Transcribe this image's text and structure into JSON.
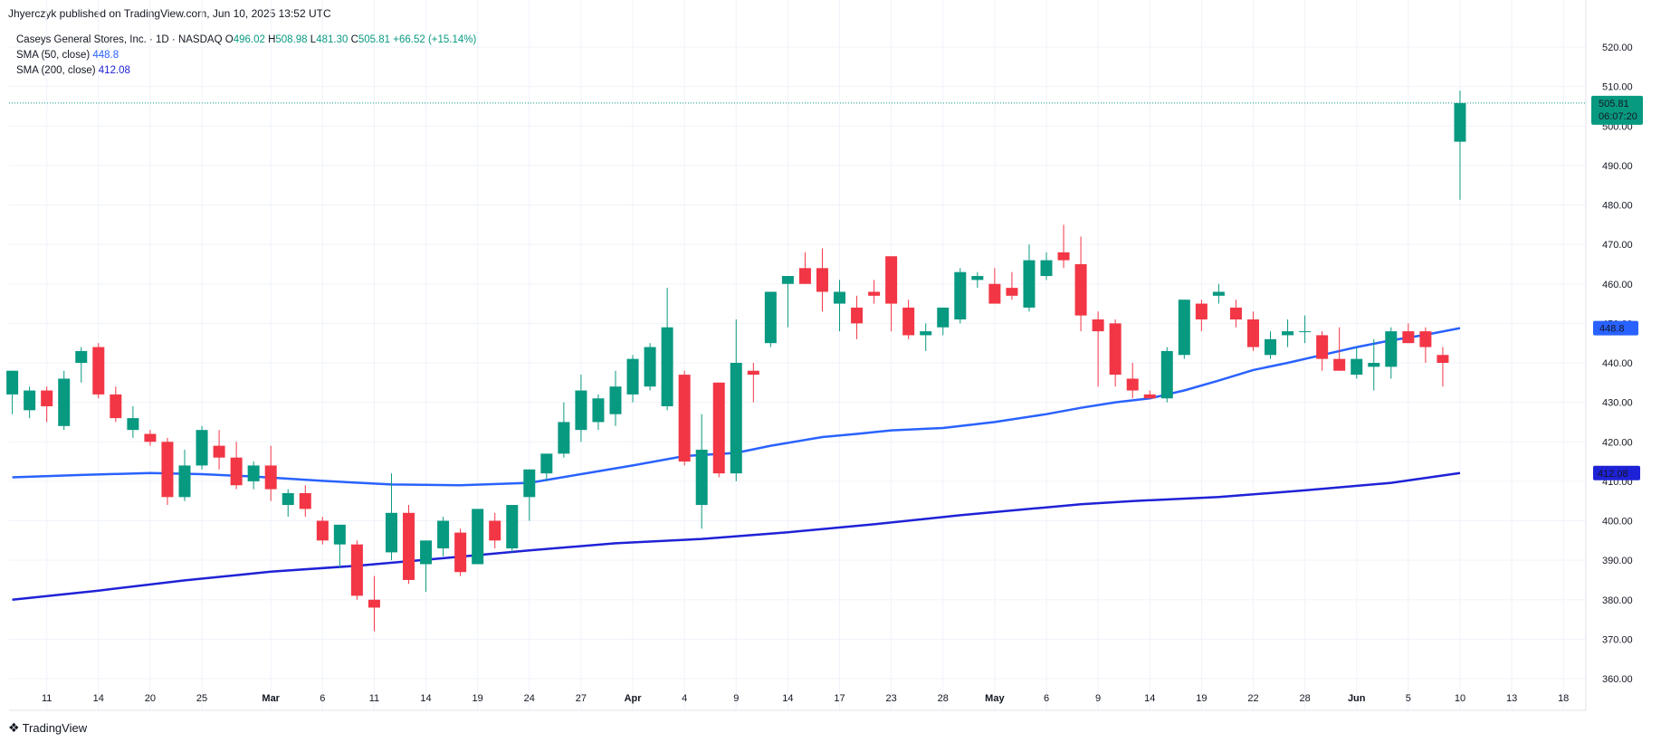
{
  "header": {
    "publisher_text": "Jhyerczyk published on TradingView.com, Jun 10, 2025 13:52 UTC"
  },
  "legend": {
    "symbol": "Caseys General Stores, Inc. · 1D · NASDAQ",
    "o_label": "O",
    "o_value": "496.02",
    "h_label": "H",
    "h_value": "508.98",
    "l_label": "L",
    "l_value": "481.30",
    "c_label": "C",
    "c_value": "505.81",
    "change": "+66.52 (+15.14%)",
    "sma50_label": "SMA (50, close)",
    "sma50_value": "448.8",
    "sma200_label": "SMA (200, close)",
    "sma200_value": "412.08"
  },
  "price_badge": {
    "price": "505.81",
    "countdown": "06:07:20"
  },
  "footer": {
    "brand": "TradingView"
  },
  "colors": {
    "up": "#089981",
    "down": "#f23645",
    "sma50": "#2962ff",
    "sma200": "#1e22d6",
    "grid": "#f0f3fa"
  },
  "chart_data": {
    "type": "candlestick",
    "ylim": [
      355,
      525
    ],
    "y_ticks": [
      360,
      370,
      380,
      390,
      400,
      410,
      420,
      430,
      440,
      450,
      460,
      470,
      480,
      490,
      500,
      510,
      520
    ],
    "y_tick_labels": [
      "360.00",
      "370.00",
      "380.00",
      "390.00",
      "400.00",
      "410.00",
      "420.00",
      "430.00",
      "440.00",
      "450.00",
      "460.00",
      "470.00",
      "480.00",
      "490.00",
      "500.00",
      "510.00",
      "520.00"
    ],
    "x_ticks": [
      {
        "label": "11",
        "slot": 2,
        "bold": false
      },
      {
        "label": "14",
        "slot": 5,
        "bold": false
      },
      {
        "label": "20",
        "slot": 8,
        "bold": false
      },
      {
        "label": "25",
        "slot": 11,
        "bold": false
      },
      {
        "label": "Mar",
        "slot": 15,
        "bold": true
      },
      {
        "label": "6",
        "slot": 18,
        "bold": false
      },
      {
        "label": "11",
        "slot": 21,
        "bold": false
      },
      {
        "label": "14",
        "slot": 24,
        "bold": false
      },
      {
        "label": "19",
        "slot": 27,
        "bold": false
      },
      {
        "label": "24",
        "slot": 30,
        "bold": false
      },
      {
        "label": "27",
        "slot": 33,
        "bold": false
      },
      {
        "label": "Apr",
        "slot": 36,
        "bold": true
      },
      {
        "label": "4",
        "slot": 39,
        "bold": false
      },
      {
        "label": "9",
        "slot": 42,
        "bold": false
      },
      {
        "label": "14",
        "slot": 45,
        "bold": false
      },
      {
        "label": "17",
        "slot": 48,
        "bold": false
      },
      {
        "label": "23",
        "slot": 51,
        "bold": false
      },
      {
        "label": "28",
        "slot": 54,
        "bold": false
      },
      {
        "label": "May",
        "slot": 57,
        "bold": true
      },
      {
        "label": "6",
        "slot": 60,
        "bold": false
      },
      {
        "label": "9",
        "slot": 63,
        "bold": false
      },
      {
        "label": "14",
        "slot": 66,
        "bold": false
      },
      {
        "label": "19",
        "slot": 69,
        "bold": false
      },
      {
        "label": "22",
        "slot": 72,
        "bold": false
      },
      {
        "label": "28",
        "slot": 75,
        "bold": false
      },
      {
        "label": "Jun",
        "slot": 78,
        "bold": true
      },
      {
        "label": "5",
        "slot": 81,
        "bold": false
      },
      {
        "label": "10",
        "slot": 84,
        "bold": false
      },
      {
        "label": "13",
        "slot": 87,
        "bold": false
      },
      {
        "label": "18",
        "slot": 90,
        "bold": false
      }
    ],
    "candles": [
      {
        "o": 432,
        "h": 438,
        "l": 427,
        "c": 438
      },
      {
        "o": 428,
        "h": 434,
        "l": 426,
        "c": 433
      },
      {
        "o": 433,
        "h": 434,
        "l": 425,
        "c": 429
      },
      {
        "o": 424,
        "h": 438,
        "l": 423,
        "c": 436
      },
      {
        "o": 440,
        "h": 444,
        "l": 435,
        "c": 443
      },
      {
        "o": 444,
        "h": 445,
        "l": 431,
        "c": 432
      },
      {
        "o": 432,
        "h": 434,
        "l": 425,
        "c": 426
      },
      {
        "o": 423,
        "h": 429,
        "l": 421,
        "c": 426
      },
      {
        "o": 422,
        "h": 423,
        "l": 419,
        "c": 420
      },
      {
        "o": 420,
        "h": 421,
        "l": 404,
        "c": 406
      },
      {
        "o": 406,
        "h": 418,
        "l": 405,
        "c": 414
      },
      {
        "o": 414,
        "h": 424,
        "l": 413,
        "c": 423
      },
      {
        "o": 419,
        "h": 423,
        "l": 413,
        "c": 416
      },
      {
        "o": 416,
        "h": 420,
        "l": 408,
        "c": 409
      },
      {
        "o": 410,
        "h": 415,
        "l": 408,
        "c": 414
      },
      {
        "o": 414,
        "h": 419,
        "l": 405,
        "c": 408
      },
      {
        "o": 404,
        "h": 408,
        "l": 401,
        "c": 407
      },
      {
        "o": 407,
        "h": 409,
        "l": 401,
        "c": 403
      },
      {
        "o": 400,
        "h": 401,
        "l": 394,
        "c": 395
      },
      {
        "o": 394,
        "h": 399,
        "l": 388,
        "c": 399
      },
      {
        "o": 394,
        "h": 395,
        "l": 380,
        "c": 381
      },
      {
        "o": 380,
        "h": 386,
        "l": 372,
        "c": 378
      },
      {
        "o": 392,
        "h": 412,
        "l": 390,
        "c": 402
      },
      {
        "o": 402,
        "h": 404,
        "l": 384,
        "c": 385
      },
      {
        "o": 389,
        "h": 395,
        "l": 382,
        "c": 395
      },
      {
        "o": 393,
        "h": 401,
        "l": 391,
        "c": 400
      },
      {
        "o": 397,
        "h": 398,
        "l": 386,
        "c": 387
      },
      {
        "o": 389,
        "h": 402,
        "l": 389,
        "c": 403
      },
      {
        "o": 400,
        "h": 402,
        "l": 393,
        "c": 395
      },
      {
        "o": 393,
        "h": 404,
        "l": 392,
        "c": 404
      },
      {
        "o": 406,
        "h": 413,
        "l": 400,
        "c": 413
      },
      {
        "o": 412,
        "h": 417,
        "l": 410,
        "c": 417
      },
      {
        "o": 417,
        "h": 430,
        "l": 416,
        "c": 425
      },
      {
        "o": 423,
        "h": 437,
        "l": 420,
        "c": 433
      },
      {
        "o": 425,
        "h": 432,
        "l": 423,
        "c": 431
      },
      {
        "o": 427,
        "h": 438,
        "l": 424,
        "c": 434
      },
      {
        "o": 432,
        "h": 442,
        "l": 430,
        "c": 441
      },
      {
        "o": 434,
        "h": 445,
        "l": 433,
        "c": 444
      },
      {
        "o": 429,
        "h": 459,
        "l": 428,
        "c": 449
      },
      {
        "o": 437,
        "h": 438,
        "l": 414,
        "c": 415
      },
      {
        "o": 404,
        "h": 427,
        "l": 398,
        "c": 418
      },
      {
        "o": 435,
        "h": 435,
        "l": 411,
        "c": 412
      },
      {
        "o": 412,
        "h": 451,
        "l": 410,
        "c": 440
      },
      {
        "o": 438,
        "h": 440,
        "l": 430,
        "c": 437
      },
      {
        "o": 445,
        "h": 458,
        "l": 444,
        "c": 458
      },
      {
        "o": 460,
        "h": 462,
        "l": 449,
        "c": 462
      },
      {
        "o": 464,
        "h": 468,
        "l": 460,
        "c": 460
      },
      {
        "o": 464,
        "h": 469,
        "l": 453,
        "c": 458
      },
      {
        "o": 455,
        "h": 461,
        "l": 448,
        "c": 458
      },
      {
        "o": 454,
        "h": 457,
        "l": 446,
        "c": 450
      },
      {
        "o": 458,
        "h": 461,
        "l": 455,
        "c": 457
      },
      {
        "o": 467,
        "h": 467,
        "l": 448,
        "c": 455
      },
      {
        "o": 454,
        "h": 456,
        "l": 446,
        "c": 447
      },
      {
        "o": 447,
        "h": 450,
        "l": 443,
        "c": 448
      },
      {
        "o": 449,
        "h": 454,
        "l": 447,
        "c": 454
      },
      {
        "o": 451,
        "h": 464,
        "l": 450,
        "c": 463
      },
      {
        "o": 461,
        "h": 463,
        "l": 459,
        "c": 462
      },
      {
        "o": 460,
        "h": 464,
        "l": 455,
        "c": 455
      },
      {
        "o": 459,
        "h": 463,
        "l": 456,
        "c": 457
      },
      {
        "o": 454,
        "h": 470,
        "l": 453,
        "c": 466
      },
      {
        "o": 462,
        "h": 468,
        "l": 461,
        "c": 466
      },
      {
        "o": 468,
        "h": 475,
        "l": 464,
        "c": 466
      },
      {
        "o": 465,
        "h": 472,
        "l": 448,
        "c": 452
      },
      {
        "o": 451,
        "h": 453,
        "l": 434,
        "c": 448
      },
      {
        "o": 450,
        "h": 451,
        "l": 434,
        "c": 437
      },
      {
        "o": 436,
        "h": 440,
        "l": 431,
        "c": 433
      },
      {
        "o": 432,
        "h": 433,
        "l": 431,
        "c": 431
      },
      {
        "o": 431,
        "h": 444,
        "l": 430,
        "c": 443
      },
      {
        "o": 442,
        "h": 456,
        "l": 441,
        "c": 456
      },
      {
        "o": 455,
        "h": 456,
        "l": 448,
        "c": 451
      },
      {
        "o": 457,
        "h": 460,
        "l": 455,
        "c": 458
      },
      {
        "o": 454,
        "h": 456,
        "l": 449,
        "c": 451
      },
      {
        "o": 451,
        "h": 453,
        "l": 443,
        "c": 444
      },
      {
        "o": 442,
        "h": 448,
        "l": 441,
        "c": 446
      },
      {
        "o": 447,
        "h": 451,
        "l": 444,
        "c": 448
      },
      {
        "o": 448,
        "h": 452,
        "l": 445,
        "c": 448
      },
      {
        "o": 447,
        "h": 448,
        "l": 438,
        "c": 441
      },
      {
        "o": 441,
        "h": 449,
        "l": 438,
        "c": 438
      },
      {
        "o": 437,
        "h": 444,
        "l": 436,
        "c": 441
      },
      {
        "o": 439,
        "h": 446,
        "l": 433,
        "c": 440
      },
      {
        "o": 439,
        "h": 449,
        "l": 436,
        "c": 448
      },
      {
        "o": 448,
        "h": 450,
        "l": 445,
        "c": 445
      },
      {
        "o": 448,
        "h": 449,
        "l": 440,
        "c": 444
      },
      {
        "o": 442,
        "h": 444,
        "l": 434,
        "c": 440
      },
      {
        "o": 496.02,
        "h": 508.98,
        "l": 481.3,
        "c": 505.81
      }
    ],
    "sma50": [
      [
        0,
        411.0
      ],
      [
        4,
        411.6
      ],
      [
        8,
        412.1
      ],
      [
        11,
        411.8
      ],
      [
        14,
        411.2
      ],
      [
        18,
        410.1
      ],
      [
        22,
        409.2
      ],
      [
        26,
        409.0
      ],
      [
        30,
        409.6
      ],
      [
        33,
        411.8
      ],
      [
        36,
        414.0
      ],
      [
        39,
        416.4
      ],
      [
        42,
        417.2
      ],
      [
        44,
        419.0
      ],
      [
        47,
        421.2
      ],
      [
        49,
        422.0
      ],
      [
        51,
        422.9
      ],
      [
        54,
        423.5
      ],
      [
        57,
        425.0
      ],
      [
        60,
        427.0
      ],
      [
        62,
        428.6
      ],
      [
        64,
        430.0
      ],
      [
        66,
        431.0
      ],
      [
        68,
        433.0
      ],
      [
        70,
        435.5
      ],
      [
        72,
        438.2
      ],
      [
        74,
        440.0
      ],
      [
        76,
        442.0
      ],
      [
        78,
        444.0
      ],
      [
        80,
        445.7
      ],
      [
        82,
        447.1
      ],
      [
        84,
        448.8
      ]
    ],
    "sma200": [
      [
        0,
        380.0
      ],
      [
        5,
        382.3
      ],
      [
        10,
        384.9
      ],
      [
        15,
        387.1
      ],
      [
        20,
        388.6
      ],
      [
        25,
        390.5
      ],
      [
        30,
        392.5
      ],
      [
        35,
        394.3
      ],
      [
        40,
        395.4
      ],
      [
        45,
        397.1
      ],
      [
        50,
        399.1
      ],
      [
        55,
        401.4
      ],
      [
        60,
        403.4
      ],
      [
        62,
        404.2
      ],
      [
        65,
        405.0
      ],
      [
        70,
        406.0
      ],
      [
        75,
        407.7
      ],
      [
        80,
        409.6
      ],
      [
        84,
        412.08
      ]
    ]
  }
}
